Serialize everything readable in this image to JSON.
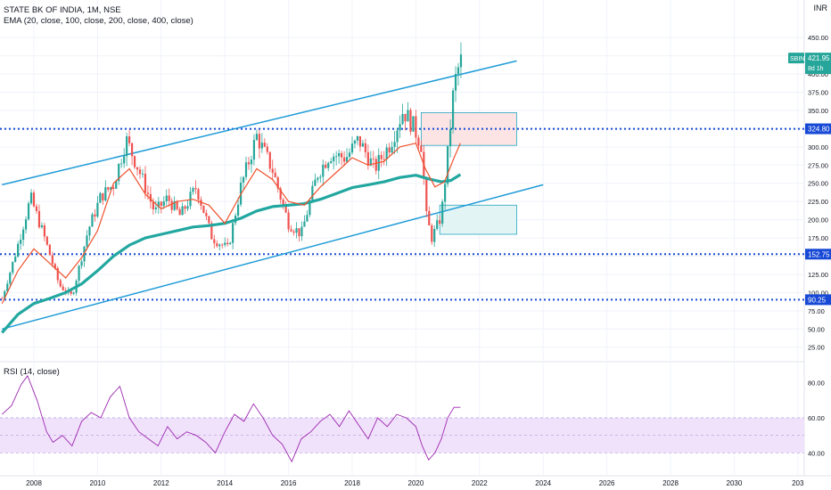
{
  "header": {
    "title": "STATE BK OF INDIA, 1M, NSE",
    "ema_label": "EMA (20, close, 100, close, 200, close, 400, close)",
    "rsi_label": "RSI (14, close)",
    "currency": "INR"
  },
  "colors": {
    "up": "#26a69a",
    "down": "#ef5350",
    "ema20": "#f0522e",
    "ema100": "#22a7a0",
    "channel": "#1e9bd7",
    "level": "#1749d6",
    "rsi": "#9c27b0",
    "rsi_band": "#f1e2fb",
    "price_tag": "#26a69a",
    "level_tag": "#1749d6"
  },
  "chart_data": {
    "type": "candlestick",
    "x_ticks": [
      "2008",
      "2010",
      "2012",
      "2014",
      "2016",
      "2018",
      "2020",
      "2022",
      "2024",
      "2026",
      "2028",
      "2030",
      "203"
    ],
    "y_ticks": [
      "450.00",
      "425.00",
      "400.00",
      "375.00",
      "350.00",
      "325.00",
      "300.00",
      "275.00",
      "250.00",
      "225.00",
      "200.00",
      "175.00",
      "150.00",
      "125.00",
      "100.00",
      "75.00",
      "50.00",
      "25.00"
    ],
    "ylim": [
      10,
      460
    ],
    "last_price": {
      "symbol": "SBIN",
      "value": "421.95",
      "countdown": "8d 1h",
      "numeric": 421.95
    },
    "horizontal_levels": [
      {
        "label": "324.80",
        "value": 324.8
      },
      {
        "label": "152.75",
        "value": 152.75
      },
      {
        "label": "90.25",
        "value": 90.25
      }
    ],
    "channel_lines": [
      {
        "from": [
          "2007-01",
          248
        ],
        "to": [
          "2023-03",
          418
        ]
      },
      {
        "from": [
          "2007-01",
          50
        ],
        "to": [
          "2024-01",
          248
        ]
      }
    ],
    "zones": [
      {
        "x": [
          "2020-03",
          "2023-03"
        ],
        "y": [
          302,
          347
        ],
        "fill": "#fce4e4"
      },
      {
        "x": [
          "2020-10",
          "2023-03"
        ],
        "y": [
          180,
          220
        ],
        "fill": "#e3f4f4"
      }
    ],
    "ema20": [
      [
        2007.0,
        85
      ],
      [
        2007.5,
        130
      ],
      [
        2008.0,
        160
      ],
      [
        2008.5,
        140
      ],
      [
        2009.0,
        120
      ],
      [
        2009.5,
        148
      ],
      [
        2010.0,
        185
      ],
      [
        2010.5,
        250
      ],
      [
        2011.0,
        270
      ],
      [
        2011.5,
        235
      ],
      [
        2012.0,
        215
      ],
      [
        2012.5,
        225
      ],
      [
        2013.0,
        228
      ],
      [
        2013.5,
        220
      ],
      [
        2014.0,
        195
      ],
      [
        2014.5,
        235
      ],
      [
        2015.0,
        270
      ],
      [
        2015.5,
        255
      ],
      [
        2016.0,
        225
      ],
      [
        2016.5,
        220
      ],
      [
        2017.0,
        245
      ],
      [
        2017.5,
        265
      ],
      [
        2018.0,
        285
      ],
      [
        2018.5,
        275
      ],
      [
        2019.0,
        280
      ],
      [
        2019.5,
        300
      ],
      [
        2020.0,
        305
      ],
      [
        2020.3,
        270
      ],
      [
        2020.6,
        245
      ],
      [
        2020.9,
        252
      ],
      [
        2021.2,
        285
      ],
      [
        2021.4,
        305
      ]
    ],
    "ema100": [
      [
        2007.0,
        45
      ],
      [
        2007.5,
        70
      ],
      [
        2008.0,
        85
      ],
      [
        2008.5,
        92
      ],
      [
        2009.0,
        100
      ],
      [
        2009.5,
        112
      ],
      [
        2010.0,
        130
      ],
      [
        2010.5,
        150
      ],
      [
        2011.0,
        165
      ],
      [
        2011.5,
        175
      ],
      [
        2012.0,
        180
      ],
      [
        2012.5,
        185
      ],
      [
        2013.0,
        190
      ],
      [
        2013.5,
        192
      ],
      [
        2014.0,
        195
      ],
      [
        2014.5,
        202
      ],
      [
        2015.0,
        212
      ],
      [
        2015.5,
        218
      ],
      [
        2016.0,
        220
      ],
      [
        2016.5,
        222
      ],
      [
        2017.0,
        228
      ],
      [
        2017.5,
        236
      ],
      [
        2018.0,
        244
      ],
      [
        2018.5,
        248
      ],
      [
        2019.0,
        252
      ],
      [
        2019.5,
        258
      ],
      [
        2020.0,
        261
      ],
      [
        2020.4,
        256
      ],
      [
        2020.8,
        252
      ],
      [
        2021.1,
        254
      ],
      [
        2021.4,
        262
      ]
    ],
    "candle_anchors": [
      [
        2007.0,
        92
      ],
      [
        2007.4,
        150
      ],
      [
        2007.9,
        230
      ],
      [
        2008.3,
        180
      ],
      [
        2008.8,
        110
      ],
      [
        2009.2,
        95
      ],
      [
        2009.7,
        185
      ],
      [
        2010.1,
        232
      ],
      [
        2010.5,
        248
      ],
      [
        2010.9,
        310
      ],
      [
        2011.3,
        268
      ],
      [
        2011.8,
        210
      ],
      [
        2012.2,
        230
      ],
      [
        2012.6,
        205
      ],
      [
        2013.1,
        245
      ],
      [
        2013.6,
        175
      ],
      [
        2014.1,
        160
      ],
      [
        2014.5,
        245
      ],
      [
        2015.0,
        315
      ],
      [
        2015.5,
        268
      ],
      [
        2016.0,
        195
      ],
      [
        2016.4,
        180
      ],
      [
        2016.9,
        262
      ],
      [
        2017.3,
        290
      ],
      [
        2017.8,
        285
      ],
      [
        2018.2,
        310
      ],
      [
        2018.7,
        270
      ],
      [
        2019.2,
        305
      ],
      [
        2019.6,
        350
      ],
      [
        2019.9,
        330
      ],
      [
        2020.2,
        300
      ],
      [
        2020.3,
        210
      ],
      [
        2020.5,
        175
      ],
      [
        2020.8,
        205
      ],
      [
        2021.0,
        290
      ],
      [
        2021.2,
        385
      ],
      [
        2021.35,
        410
      ],
      [
        2021.45,
        422
      ]
    ],
    "rsi": {
      "ticks": [
        "80.00",
        "60.00",
        "40.00"
      ],
      "ylim": [
        30,
        90
      ],
      "band": [
        40,
        60
      ],
      "values": [
        [
          2007.0,
          62
        ],
        [
          2007.3,
          67
        ],
        [
          2007.6,
          79
        ],
        [
          2007.8,
          84
        ],
        [
          2008.1,
          70
        ],
        [
          2008.4,
          52
        ],
        [
          2008.6,
          46
        ],
        [
          2008.9,
          50
        ],
        [
          2009.2,
          44
        ],
        [
          2009.5,
          58
        ],
        [
          2009.8,
          63
        ],
        [
          2010.1,
          60
        ],
        [
          2010.4,
          72
        ],
        [
          2010.7,
          78
        ],
        [
          2011.0,
          60
        ],
        [
          2011.3,
          52
        ],
        [
          2011.6,
          48
        ],
        [
          2011.9,
          44
        ],
        [
          2012.2,
          55
        ],
        [
          2012.5,
          48
        ],
        [
          2012.8,
          52
        ],
        [
          2013.1,
          50
        ],
        [
          2013.4,
          46
        ],
        [
          2013.7,
          40
        ],
        [
          2014.0,
          52
        ],
        [
          2014.3,
          62
        ],
        [
          2014.6,
          58
        ],
        [
          2014.9,
          68
        ],
        [
          2015.2,
          60
        ],
        [
          2015.5,
          50
        ],
        [
          2015.8,
          45
        ],
        [
          2016.1,
          35
        ],
        [
          2016.4,
          48
        ],
        [
          2016.7,
          52
        ],
        [
          2017.0,
          58
        ],
        [
          2017.3,
          62
        ],
        [
          2017.6,
          55
        ],
        [
          2017.9,
          64
        ],
        [
          2018.2,
          56
        ],
        [
          2018.5,
          48
        ],
        [
          2018.8,
          60
        ],
        [
          2019.1,
          55
        ],
        [
          2019.4,
          62
        ],
        [
          2019.7,
          60
        ],
        [
          2020.0,
          55
        ],
        [
          2020.2,
          44
        ],
        [
          2020.4,
          36
        ],
        [
          2020.6,
          40
        ],
        [
          2020.8,
          48
        ],
        [
          2021.0,
          60
        ],
        [
          2021.2,
          66
        ],
        [
          2021.4,
          66
        ]
      ]
    }
  }
}
